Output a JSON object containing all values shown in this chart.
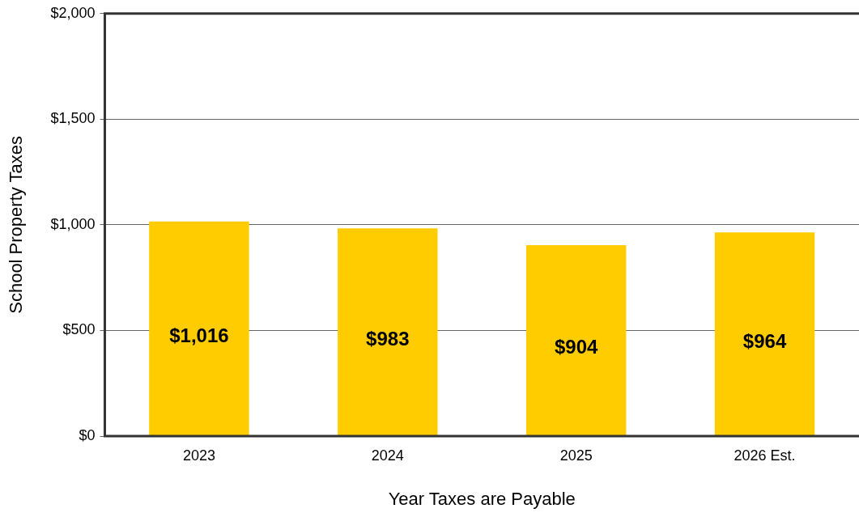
{
  "chart_data": {
    "type": "bar",
    "xlabel": "Year Taxes are Payable",
    "ylabel": "School Property Taxes",
    "categories": [
      "2023",
      "2024",
      "2025",
      "2026 Est."
    ],
    "values": [
      1016,
      983,
      904,
      964
    ],
    "value_labels": [
      "$1,016",
      "$983",
      "$904",
      "$964"
    ],
    "color": "#ffcc00",
    "ylim": [
      0,
      2000
    ],
    "yticks": [
      {
        "value": 0,
        "label": "$0"
      },
      {
        "value": 500,
        "label": "$500"
      },
      {
        "value": 1000,
        "label": "$1,000"
      },
      {
        "value": 1500,
        "label": "$1,500"
      },
      {
        "value": 2000,
        "label": "$2,000"
      }
    ],
    "grid": "y"
  }
}
